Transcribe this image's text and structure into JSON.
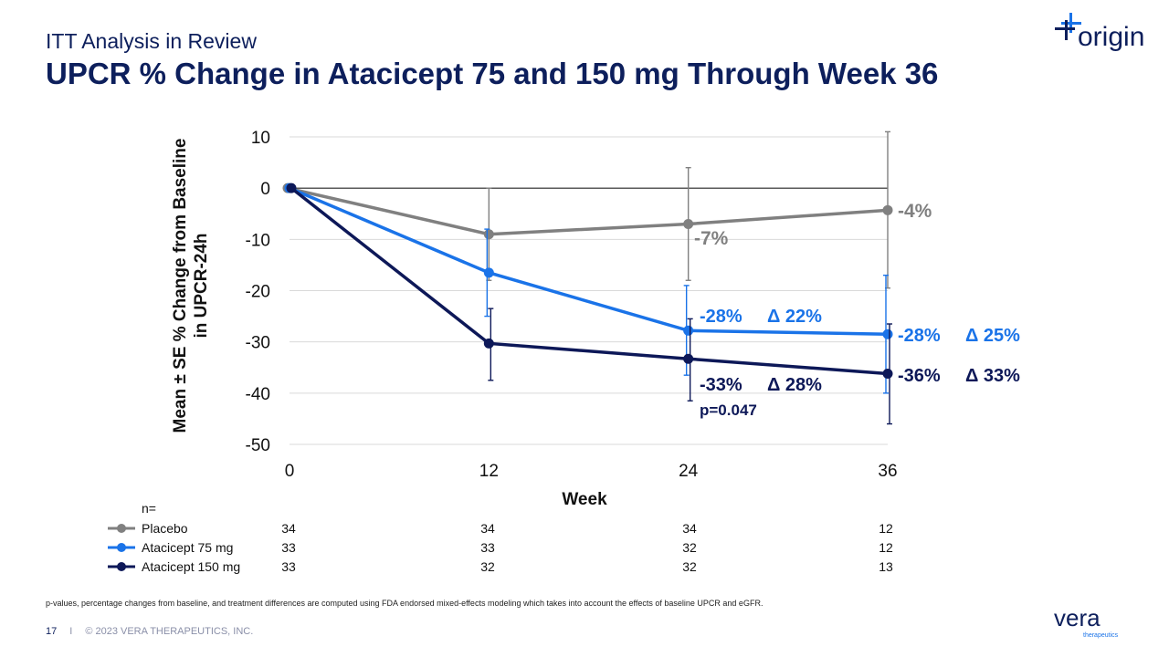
{
  "header": {
    "subtitle": "ITT Analysis in Review",
    "title": "UPCR % Change in Atacicept 75 and 150 mg Through Week 36"
  },
  "logos": {
    "origin": "origin",
    "vera": "vera",
    "vera_sub": "therapeutics"
  },
  "colors": {
    "title": "#0d1f5c",
    "placebo": "#808080",
    "atacicept75": "#1a73e8",
    "atacicept150": "#0d1858"
  },
  "chart_data": {
    "type": "line",
    "ylabel_line1": "Mean ± SE % Change from Baseline",
    "ylabel_line2": "in UPCR-24h",
    "xlabel": "Week",
    "x": [
      0,
      12,
      24,
      36
    ],
    "xticks": [
      "0",
      "12",
      "24",
      "36"
    ],
    "ylim": [
      -50,
      10
    ],
    "yticks": [
      "10",
      "0",
      "-10",
      "-20",
      "-30",
      "-40",
      "-50"
    ],
    "grid": true,
    "series": [
      {
        "name": "Placebo",
        "color": "#808080",
        "values": [
          0,
          -9,
          -7,
          -4.3
        ],
        "err_low": [
          0,
          -18,
          -18,
          -19.5
        ],
        "err_high": [
          0,
          0,
          4,
          11
        ],
        "n": [
          "34",
          "34",
          "34",
          "12"
        ]
      },
      {
        "name": "Atacicept 75 mg",
        "color": "#1a73e8",
        "values": [
          0,
          -16.5,
          -27.8,
          -28.5
        ],
        "err_low": [
          0,
          -25,
          -36.5,
          -40
        ],
        "err_high": [
          0,
          -8,
          -19,
          -17
        ]
      },
      {
        "name": "Atacicept 150 mg",
        "color": "#0d1858",
        "values": [
          0,
          -30.3,
          -33.3,
          -36.2
        ],
        "err_low": [
          0,
          -37.5,
          -41.5,
          -46
        ],
        "err_high": [
          0,
          -23.5,
          -25.5,
          -26.5
        ]
      }
    ],
    "annotations": {
      "placebo_24": "-7%",
      "placebo_36": "-4%",
      "a75_24": "-28%",
      "a75_24_delta": "Δ 22%",
      "a75_36": "-28%",
      "a75_36_delta": "Δ 25%",
      "a150_24": "-33%",
      "a150_24_delta": "Δ 28%",
      "a150_24_p": "p=0.047",
      "a150_36": "-36%",
      "a150_36_delta": "Δ 33%"
    }
  },
  "n_table": {
    "header": "n=",
    "rows": [
      {
        "label": "Placebo",
        "values": [
          "34",
          "34",
          "34",
          "12"
        ]
      },
      {
        "label": "Atacicept 75 mg",
        "values": [
          "33",
          "33",
          "32",
          "12"
        ]
      },
      {
        "label": "Atacicept 150 mg",
        "values": [
          "33",
          "32",
          "32",
          "13"
        ]
      }
    ]
  },
  "footnote": "p-values, percentage changes from baseline, and treatment differences are computed using FDA endorsed mixed-effects modeling which takes into account the effects of baseline UPCR and eGFR.",
  "footer": {
    "page": "17",
    "separator": "I",
    "copyright": "© 2023 VERA THERAPEUTICS, INC."
  }
}
